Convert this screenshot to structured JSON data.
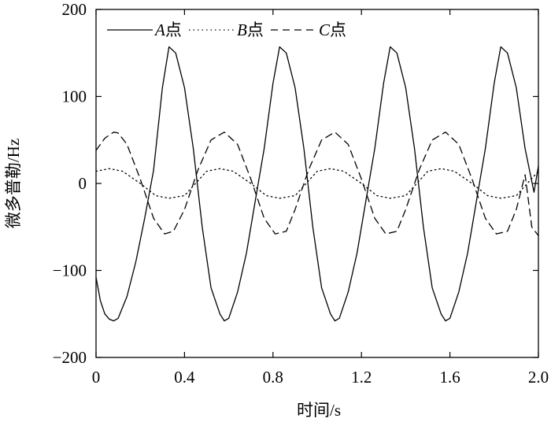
{
  "chart_data": {
    "type": "line",
    "title": "",
    "xlabel": "时间/s",
    "ylabel": "微多普勒/Hz",
    "xlim": [
      0,
      2.0
    ],
    "ylim": [
      -200,
      200
    ],
    "xticks": [
      "0",
      "0.4",
      "0.8",
      "1.2",
      "1.6",
      "2.0"
    ],
    "yticks": [
      "200",
      "100",
      "0",
      "−100",
      "−200"
    ],
    "grid": false,
    "legend_position": "top",
    "series": [
      {
        "name_prefix": "A",
        "name_suffix": "点",
        "style": "solid",
        "x": [
          0,
          0.02,
          0.04,
          0.06,
          0.08,
          0.1,
          0.14,
          0.18,
          0.22,
          0.26,
          0.3,
          0.33,
          0.36,
          0.4,
          0.44,
          0.48,
          0.52,
          0.56,
          0.58,
          0.6,
          0.64,
          0.68,
          0.72,
          0.76,
          0.8,
          0.83,
          0.86,
          0.9,
          0.94,
          0.98,
          1.02,
          1.06,
          1.08,
          1.1,
          1.14,
          1.18,
          1.22,
          1.26,
          1.3,
          1.33,
          1.36,
          1.4,
          1.44,
          1.48,
          1.52,
          1.56,
          1.58,
          1.6,
          1.64,
          1.68,
          1.72,
          1.76,
          1.8,
          1.83,
          1.86,
          1.9,
          1.94,
          1.98,
          2.0
        ],
        "y": [
          -108,
          -135,
          -150,
          -156,
          -158,
          -155,
          -130,
          -90,
          -40,
          15,
          110,
          157,
          150,
          110,
          40,
          -50,
          -120,
          -150,
          -158,
          -155,
          -125,
          -80,
          -20,
          40,
          115,
          157,
          150,
          110,
          40,
          -50,
          -120,
          -150,
          -158,
          -155,
          -125,
          -80,
          -20,
          40,
          115,
          157,
          150,
          110,
          40,
          -50,
          -120,
          -150,
          -158,
          -155,
          -125,
          -80,
          -20,
          40,
          115,
          157,
          150,
          110,
          40,
          -10,
          20
        ]
      },
      {
        "name_prefix": "B",
        "name_suffix": "点",
        "style": "dotted",
        "x": [
          0,
          0.06,
          0.12,
          0.2,
          0.27,
          0.33,
          0.4,
          0.45,
          0.5,
          0.56,
          0.62,
          0.7,
          0.77,
          0.83,
          0.9,
          0.95,
          1.0,
          1.06,
          1.12,
          1.2,
          1.27,
          1.33,
          1.4,
          1.45,
          1.5,
          1.56,
          1.62,
          1.7,
          1.77,
          1.83,
          1.9,
          1.95,
          2.0
        ],
        "y": [
          14,
          17,
          14,
          0,
          -14,
          -17,
          -14,
          0,
          14,
          17,
          14,
          0,
          -14,
          -17,
          -14,
          0,
          14,
          17,
          14,
          0,
          -14,
          -17,
          -14,
          0,
          14,
          17,
          14,
          0,
          -14,
          -17,
          -14,
          0,
          14
        ]
      },
      {
        "name_prefix": "C",
        "name_suffix": "点",
        "style": "dashed",
        "x": [
          0,
          0.04,
          0.08,
          0.1,
          0.14,
          0.2,
          0.26,
          0.31,
          0.35,
          0.4,
          0.46,
          0.52,
          0.58,
          0.64,
          0.7,
          0.76,
          0.81,
          0.86,
          0.9,
          0.96,
          1.02,
          1.08,
          1.14,
          1.2,
          1.26,
          1.31,
          1.36,
          1.4,
          1.46,
          1.52,
          1.58,
          1.64,
          1.7,
          1.76,
          1.81,
          1.86,
          1.9,
          1.94,
          1.97,
          2.0
        ],
        "y": [
          38,
          52,
          59,
          58,
          45,
          5,
          -40,
          -58,
          -55,
          -30,
          15,
          50,
          59,
          45,
          5,
          -40,
          -58,
          -55,
          -30,
          15,
          50,
          59,
          45,
          5,
          -40,
          -58,
          -55,
          -30,
          15,
          50,
          59,
          45,
          5,
          -40,
          -58,
          -55,
          -30,
          10,
          -50,
          -60
        ]
      }
    ]
  }
}
